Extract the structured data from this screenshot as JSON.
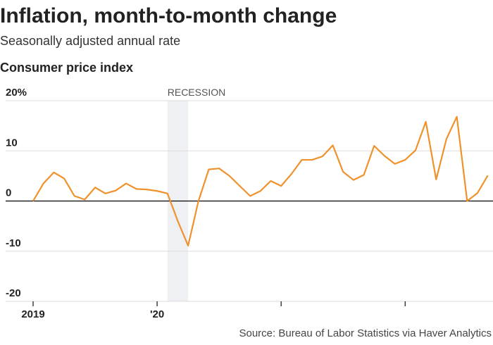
{
  "chart_data": {
    "type": "line",
    "title": "Inflation, month-to-month change",
    "subtitle": "Seasonally adjusted annual rate",
    "panel_title": "Consumer price index",
    "source": "Source: Bureau of Labor Statistics via Haver Analytics",
    "recession": {
      "label": "RECESSION",
      "start": 13,
      "end": 15
    },
    "x": [
      0,
      1,
      2,
      3,
      4,
      5,
      6,
      7,
      8,
      9,
      10,
      11,
      12,
      13,
      14,
      15,
      16,
      17,
      18,
      19,
      20,
      21,
      22,
      23,
      24,
      25,
      26,
      27,
      28,
      29,
      30,
      31,
      32,
      33,
      34,
      35,
      36,
      37,
      38,
      39,
      40,
      41,
      42,
      43,
      44
    ],
    "series": [
      {
        "name": "Consumer price index",
        "color": "#f0922b",
        "values": [
          0,
          3.5,
          5.7,
          4.5,
          1,
          0.3,
          2.7,
          1.5,
          2.1,
          3.5,
          2.4,
          2.3,
          2.0,
          1.5,
          -4,
          -8.9,
          0,
          6.3,
          6.5,
          5,
          3,
          1,
          2,
          4,
          3,
          5.4,
          8.2,
          8.2,
          8.9,
          11.1,
          5.8,
          4.2,
          5.2,
          11,
          9,
          7.4,
          8.2,
          10.1,
          15.8,
          4.3,
          12.4,
          16.8,
          0,
          1.6,
          5.1
        ]
      }
    ],
    "xlim": [
      0,
      44.5
    ],
    "xticks": [
      0,
      12,
      24,
      36
    ],
    "xtick_labels": [
      "2019",
      "'20",
      null,
      null
    ],
    "ylim": [
      -20,
      20
    ],
    "yticks": [
      {
        "value": 20,
        "label": "20%"
      },
      10,
      0,
      -10,
      -20
    ],
    "grid": true
  }
}
